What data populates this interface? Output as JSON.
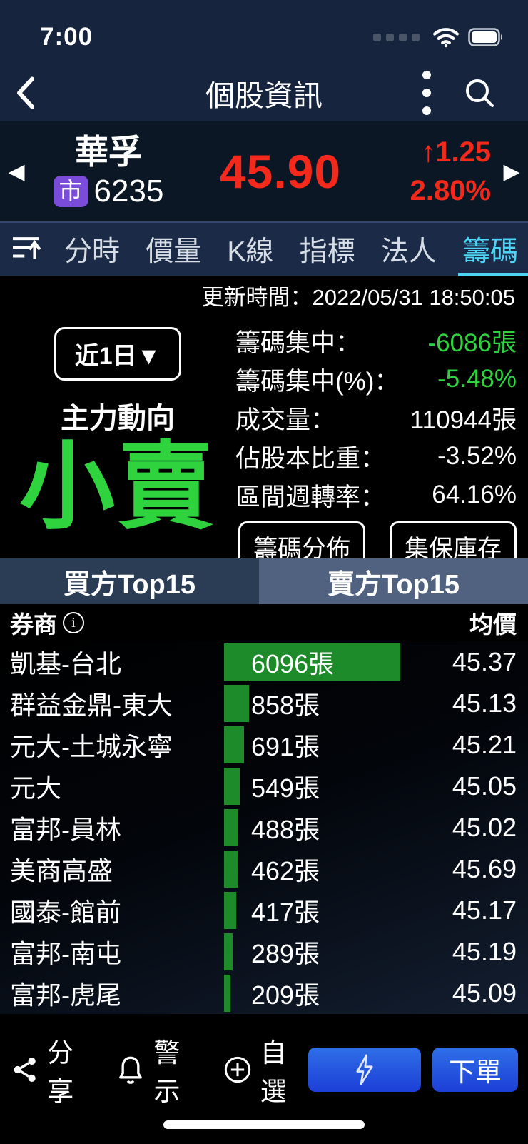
{
  "status_bar": {
    "time": "7:00"
  },
  "nav": {
    "title": "個股資訊"
  },
  "stock": {
    "name": "華孚",
    "market_badge": "市",
    "code": "6235",
    "price": "45.90",
    "change_arrow": "↑",
    "change": "1.25",
    "change_pct": "2.80%",
    "prev_arrow": "◀",
    "next_arrow": "▶"
  },
  "tabs": {
    "items": [
      {
        "label": "分時",
        "active": false
      },
      {
        "label": "價量",
        "active": false
      },
      {
        "label": "K線",
        "active": false
      },
      {
        "label": "指標",
        "active": false
      },
      {
        "label": "法人",
        "active": false
      },
      {
        "label": "籌碼",
        "active": true
      }
    ]
  },
  "update_time": "更新時間：2022/05/31 18:50:05",
  "summary": {
    "period_button": "近1日▼",
    "section_title": "主力動向",
    "trend": "小賣",
    "stats": [
      {
        "label": "籌碼集中：",
        "value": "-6086張",
        "tone": "green"
      },
      {
        "label": "籌碼集中(%)：",
        "value": "-5.48%",
        "tone": "green"
      },
      {
        "label": "成交量：",
        "value": "110944張",
        "tone": "white"
      },
      {
        "label": "佔股本比重：",
        "value": "-3.52%",
        "tone": "white"
      },
      {
        "label": "區間週轉率：",
        "value": "64.16%",
        "tone": "white"
      }
    ],
    "buttons": {
      "chip_dist": "籌碼分佈",
      "depository": "集保庫存"
    }
  },
  "side_tabs": {
    "buy": "買方Top15",
    "sell": "賣方Top15",
    "active": "sell"
  },
  "table": {
    "broker_header": "券商",
    "info_glyph": "i",
    "price_header": "均價",
    "volume_unit": "張",
    "max_volume": 6096,
    "rows": [
      {
        "broker": "凱基-台北",
        "volume": 6096,
        "avg_price": "45.37"
      },
      {
        "broker": "群益金鼎-東大",
        "volume": 858,
        "avg_price": "45.13"
      },
      {
        "broker": "元大-土城永寧",
        "volume": 691,
        "avg_price": "45.21"
      },
      {
        "broker": "元大",
        "volume": 549,
        "avg_price": "45.05"
      },
      {
        "broker": "富邦-員林",
        "volume": 488,
        "avg_price": "45.02"
      },
      {
        "broker": "美商高盛",
        "volume": 462,
        "avg_price": "45.69"
      },
      {
        "broker": "國泰-館前",
        "volume": 417,
        "avg_price": "45.17"
      },
      {
        "broker": "富邦-南屯",
        "volume": 289,
        "avg_price": "45.19"
      },
      {
        "broker": "富邦-虎尾",
        "volume": 209,
        "avg_price": "45.09"
      }
    ]
  },
  "toolbar": {
    "share": "分享",
    "alert": "警示",
    "watchlist": "自選",
    "order": "下單"
  },
  "colors": {
    "up_red": "#f2291b",
    "value_green": "#2ed33e",
    "bar_green": "#1e8b2b",
    "accent_cyan": "#4ed4f5",
    "badge_purple": "#7b4bd9"
  }
}
